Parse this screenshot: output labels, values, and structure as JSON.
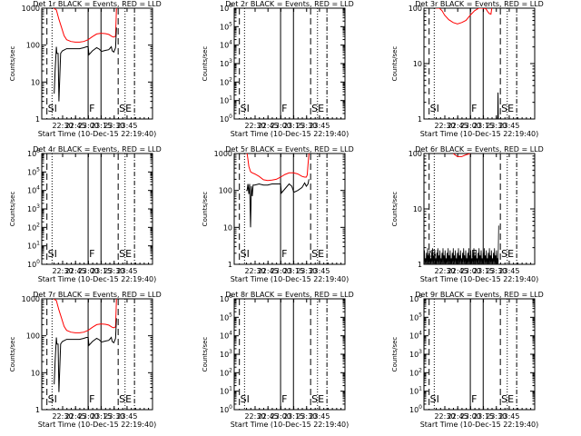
{
  "colors": {
    "events": "#000000",
    "lld": "#ff0000",
    "axis": "#000000",
    "background": "#ffffff"
  },
  "common": {
    "ylabel": "Counts/sec",
    "xlabel": "Start Time (10-Dec-15 22:19:40)",
    "xticks": [
      "22:30",
      "22:45",
      "23:00",
      "23:15",
      "23:30",
      "23:45"
    ],
    "marker_labels": {
      "si": "SI",
      "f": "F",
      "se": "SE"
    }
  },
  "chart_data": [
    {
      "type": "line",
      "title": "Det 1r  BLACK = Events, RED = LLD",
      "scale": "log",
      "ylim": [
        1,
        1000
      ],
      "yticks": [
        "1",
        "10",
        "100",
        "1000"
      ],
      "series": [
        {
          "key": "lld",
          "x": [
            0,
            3,
            6,
            9,
            12,
            15,
            20,
            25,
            30,
            35,
            40,
            45,
            50,
            55,
            60,
            64,
            68,
            70,
            72,
            73
          ],
          "y": [
            1000,
            900,
            500,
            300,
            180,
            140,
            125,
            120,
            120,
            125,
            140,
            170,
            200,
            210,
            205,
            195,
            170,
            165,
            175,
            1000
          ]
        },
        {
          "key": "events",
          "x": [
            0,
            0.5,
            1.5,
            3,
            3.5,
            5,
            6,
            8,
            10,
            15,
            20,
            25,
            30,
            35,
            38,
            40,
            41,
            45,
            50,
            53,
            55,
            56,
            60,
            64,
            67,
            68,
            70,
            72,
            73
          ],
          "y": [
            5,
            5,
            20,
            90,
            60,
            60,
            3,
            60,
            70,
            80,
            80,
            80,
            80,
            85,
            90,
            90,
            55,
            70,
            85,
            78,
            70,
            68,
            72,
            75,
            90,
            70,
            65,
            85,
            300
          ]
        }
      ]
    },
    {
      "type": "line",
      "title": "Det 2r  BLACK = Events, RED = LLD",
      "scale": "log",
      "ylim": [
        1,
        1000000
      ],
      "yticks": [
        "10^0",
        "10^1",
        "10^2",
        "10^3",
        "10^4",
        "10^5",
        "10^6"
      ],
      "series": []
    },
    {
      "type": "line",
      "title": "Det 3r  BLACK = Events, RED = LLD",
      "scale": "log",
      "ylim": [
        1,
        100
      ],
      "yticks": [
        "1",
        "10",
        "100"
      ],
      "series": [
        {
          "key": "lld",
          "x": [
            0,
            4,
            7,
            10,
            15,
            20,
            25,
            30,
            35,
            40,
            45,
            50,
            55,
            58,
            60,
            62,
            64,
            65
          ],
          "y": [
            100,
            100,
            90,
            75,
            62,
            55,
            52,
            55,
            60,
            75,
            90,
            100,
            100,
            98,
            88,
            80,
            78,
            100
          ]
        },
        {
          "key": "events",
          "x": [
            72,
            72.3,
            72.6
          ],
          "y": [
            1,
            3,
            1
          ]
        }
      ]
    },
    {
      "type": "line",
      "title": "Det 4r  BLACK = Events, RED = LLD",
      "scale": "log",
      "ylim": [
        1,
        1000000
      ],
      "yticks": [
        "10^0",
        "10^1",
        "10^2",
        "10^3",
        "10^4",
        "10^5",
        "10^6"
      ],
      "series": []
    },
    {
      "type": "line",
      "title": "Det 5r  BLACK = Events, RED = LLD",
      "scale": "log",
      "ylim": [
        1,
        1000
      ],
      "yticks": [
        "1",
        "10",
        "100",
        "1000"
      ],
      "series": [
        {
          "key": "lld",
          "x": [
            0,
            1,
            2,
            3,
            5,
            7,
            10,
            15,
            20,
            25,
            30,
            35,
            40,
            45,
            50,
            55,
            60,
            65,
            68,
            70,
            71,
            72,
            73
          ],
          "y": [
            1000,
            1000,
            700,
            450,
            320,
            300,
            280,
            240,
            195,
            185,
            190,
            200,
            230,
            270,
            300,
            300,
            280,
            240,
            230,
            230,
            260,
            500,
            1000
          ]
        },
        {
          "key": "events",
          "x": [
            0,
            1,
            2,
            3,
            4,
            5,
            6,
            7,
            8,
            10,
            15,
            20,
            25,
            30,
            35,
            38,
            40,
            41,
            45,
            50,
            53,
            55,
            56,
            60,
            65,
            68,
            70,
            72,
            73
          ],
          "y": [
            100,
            100,
            150,
            80,
            150,
            10,
            130,
            70,
            140,
            140,
            150,
            140,
            140,
            150,
            150,
            150,
            150,
            85,
            110,
            150,
            130,
            95,
            90,
            100,
            120,
            160,
            130,
            150,
            200
          ]
        }
      ]
    },
    {
      "type": "line",
      "title": "Det 6r  BLACK = Events, RED = LLD",
      "scale": "log",
      "ylim": [
        1,
        100
      ],
      "yticks": [
        "1",
        "10",
        "100"
      ],
      "series": [
        {
          "key": "lld",
          "x": [
            20,
            25,
            30,
            35,
            40
          ],
          "y": [
            100,
            88,
            88,
            95,
            100
          ]
        }
      ]
    },
    {
      "type": "line",
      "title": "Det 7r  BLACK = Events, RED = LLD",
      "scale": "log",
      "ylim": [
        1,
        1000
      ],
      "yticks": [
        "1",
        "10",
        "100",
        "1000"
      ],
      "series": [
        {
          "key": "lld",
          "x": [
            0,
            3,
            6,
            9,
            12,
            15,
            20,
            25,
            30,
            35,
            40,
            45,
            50,
            55,
            60,
            64,
            68,
            70,
            72,
            73
          ],
          "y": [
            1000,
            900,
            500,
            300,
            180,
            140,
            125,
            120,
            120,
            125,
            140,
            170,
            200,
            210,
            205,
            195,
            170,
            165,
            175,
            1000
          ]
        },
        {
          "key": "events",
          "x": [
            0,
            0.5,
            1.5,
            3,
            3.5,
            5,
            6,
            8,
            10,
            15,
            20,
            25,
            30,
            35,
            38,
            40,
            41,
            45,
            50,
            53,
            55,
            56,
            60,
            64,
            67,
            68,
            70,
            72,
            73
          ],
          "y": [
            5,
            5,
            20,
            90,
            60,
            60,
            3,
            60,
            70,
            80,
            80,
            80,
            80,
            85,
            90,
            90,
            55,
            70,
            85,
            78,
            70,
            68,
            72,
            75,
            90,
            70,
            65,
            85,
            300
          ]
        }
      ]
    },
    {
      "type": "line",
      "title": "Det 8r  BLACK = Events, RED = LLD",
      "scale": "log",
      "ylim": [
        1,
        1000000
      ],
      "yticks": [
        "10^0",
        "10^1",
        "10^2",
        "10^3",
        "10^4",
        "10^5",
        "10^6"
      ],
      "series": []
    },
    {
      "type": "line",
      "title": "Det 9r  BLACK = Events, RED = LLD",
      "scale": "log",
      "ylim": [
        1,
        1000000
      ],
      "yticks": [
        "10^0",
        "10^1",
        "10^2",
        "10^3",
        "10^4",
        "10^5",
        "10^6"
      ],
      "series": []
    }
  ]
}
